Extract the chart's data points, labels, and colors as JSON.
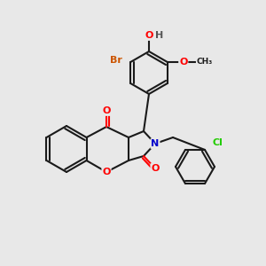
{
  "background_color": "#e8e8e8",
  "bond_color": "#1a1a1a",
  "atom_colors": {
    "O": "#ff0000",
    "N": "#0000cc",
    "Br": "#cc5500",
    "Cl": "#22cc00",
    "H": "#555555",
    "C": "#1a1a1a"
  },
  "figsize": [
    3.0,
    3.0
  ],
  "dpi": 100,
  "lw": 1.5
}
